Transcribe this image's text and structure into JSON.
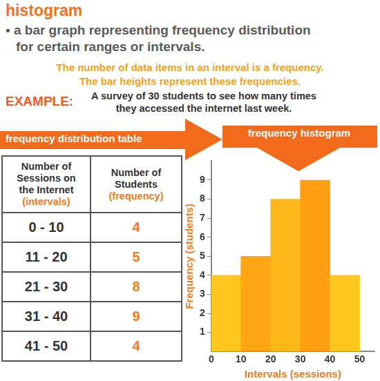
{
  "header": {
    "title": "histogram",
    "definition": [
      "• a bar graph representing frequency distribution",
      "for certain ranges or intervals."
    ],
    "notes": [
      "The number of data items in an interval is a frequency.",
      "The bar heights represent these frequencies."
    ]
  },
  "example": {
    "label": "EXAMPLE:",
    "text": [
      "A survey of 30 students to see how many times",
      "they accessed the internet last week."
    ]
  },
  "table": {
    "title": "frequency distribution table",
    "columns": [
      [
        "Number of",
        "Sessions on",
        "the Internet",
        "(intervals)"
      ],
      [
        "Number of",
        "Students",
        "(frequency)"
      ]
    ],
    "rows": [
      [
        "0 - 10",
        4
      ],
      [
        "11 - 20",
        5
      ],
      [
        "21 - 30",
        8
      ],
      [
        "31 - 40",
        9
      ],
      [
        "41 - 50",
        4
      ]
    ]
  },
  "chart_data": {
    "type": "histogram",
    "title": "frequency histogram",
    "bins": [
      0,
      10,
      20,
      30,
      40,
      50
    ],
    "values": [
      4,
      5,
      8,
      9,
      4
    ],
    "colors": [
      "#ffc61e",
      "#ffa412",
      "#ffb81a",
      "#ff9e10",
      "#ffc61e"
    ],
    "x_label": "Intervals (sessions)",
    "y_label": "Frequency (students)",
    "xlim": [
      0,
      55
    ],
    "ylim": [
      0,
      10
    ],
    "xticks": [
      0,
      10,
      20,
      30,
      40,
      50
    ],
    "yticks": [
      1,
      2,
      3,
      4,
      5,
      6,
      7,
      8,
      9
    ],
    "grid": false
  }
}
